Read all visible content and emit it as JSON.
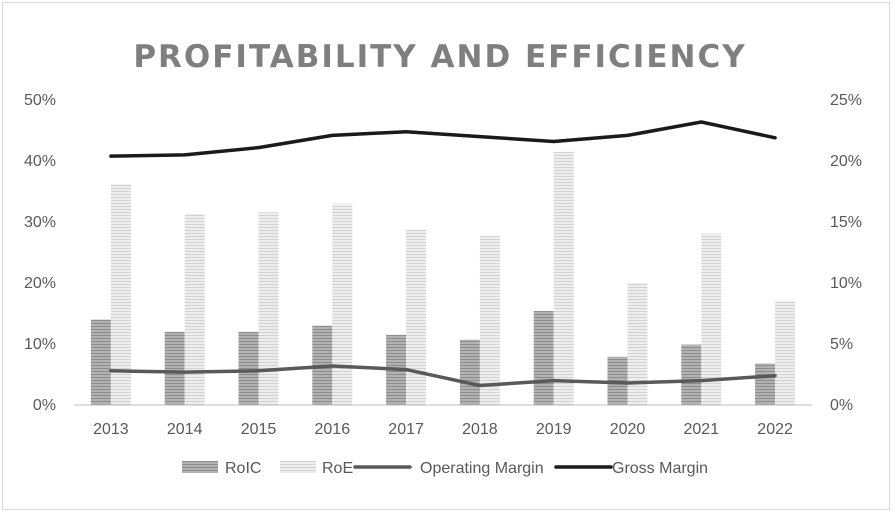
{
  "chart_data": {
    "type": "bar",
    "title": "PROFITABILITY AND EFFICIENCY",
    "categories": [
      "2013",
      "2014",
      "2015",
      "2016",
      "2017",
      "2018",
      "2019",
      "2020",
      "2021",
      "2022"
    ],
    "y_left": {
      "min": 0,
      "max": 50,
      "step": 10,
      "ticks": [
        "0%",
        "10%",
        "20%",
        "30%",
        "40%",
        "50%"
      ]
    },
    "y_right": {
      "min": 0,
      "max": 25,
      "step": 5,
      "ticks": [
        "0%",
        "5%",
        "10%",
        "15%",
        "20%",
        "25%"
      ]
    },
    "series": [
      {
        "name": "RoIC",
        "kind": "bar",
        "axis": "left",
        "color": "#a6a6a6",
        "values": [
          14.0,
          12.0,
          12.0,
          13.0,
          11.5,
          10.7,
          15.4,
          7.9,
          9.9,
          6.8
        ]
      },
      {
        "name": "RoE",
        "kind": "bar",
        "axis": "left",
        "color": "#e3e3e3",
        "values": [
          36.2,
          31.3,
          31.6,
          33.0,
          28.8,
          27.7,
          41.5,
          20.0,
          28.1,
          17.1
        ]
      },
      {
        "name": "Operating Margin",
        "kind": "line",
        "axis": "right",
        "color": "#595959",
        "values": [
          2.8,
          2.7,
          2.8,
          3.2,
          2.9,
          1.6,
          2.0,
          1.8,
          2.0,
          2.4
        ]
      },
      {
        "name": "Gross Margin",
        "kind": "line",
        "axis": "right",
        "color": "#1a1a1a",
        "values": [
          20.4,
          20.5,
          21.1,
          22.1,
          22.4,
          22.0,
          21.6,
          22.1,
          23.2,
          21.9
        ]
      }
    ],
    "legend_position": "bottom",
    "grid": false
  }
}
